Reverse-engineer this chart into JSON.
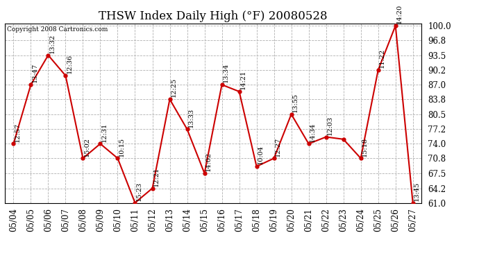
{
  "title": "THSW Index Daily High (°F) 20080528",
  "copyright": "Copyright 2008 Cartronics.com",
  "dates": [
    "05/04",
    "05/05",
    "05/06",
    "05/07",
    "05/08",
    "05/09",
    "05/10",
    "05/11",
    "05/12",
    "05/13",
    "05/14",
    "05/15",
    "05/16",
    "05/17",
    "05/18",
    "05/19",
    "05/20",
    "05/21",
    "05/22",
    "05/23",
    "05/24",
    "05/25",
    "05/26",
    "05/27"
  ],
  "values": [
    74.0,
    87.0,
    93.5,
    89.0,
    70.8,
    74.0,
    70.8,
    61.0,
    64.2,
    83.8,
    77.2,
    67.5,
    87.0,
    85.5,
    69.0,
    70.8,
    80.5,
    74.0,
    75.5,
    75.0,
    70.8,
    90.2,
    100.0,
    61.0
  ],
  "times": [
    "12:57",
    "13:47",
    "13:32",
    "12:36",
    "15:02",
    "12:31",
    "10:15",
    "15:23",
    "12:21",
    "12:25",
    "13:33",
    "14:02",
    "13:34",
    "14:21",
    "10:04",
    "12:27",
    "13:55",
    "14:34",
    "12:03",
    "",
    "15:18",
    "11:22",
    "14:20",
    "13:45"
  ],
  "ylim_min": 61.0,
  "ylim_max": 100.0,
  "yticks": [
    61.0,
    64.2,
    67.5,
    70.8,
    74.0,
    77.2,
    80.5,
    83.8,
    87.0,
    90.2,
    93.5,
    96.8,
    100.0
  ],
  "line_color": "#cc0000",
  "marker_color": "#cc0000",
  "bg_color": "#ffffff",
  "grid_color": "#b0b0b0",
  "title_fontsize": 12,
  "label_fontsize": 7,
  "tick_fontsize": 8.5,
  "copyright_fontsize": 6.5
}
